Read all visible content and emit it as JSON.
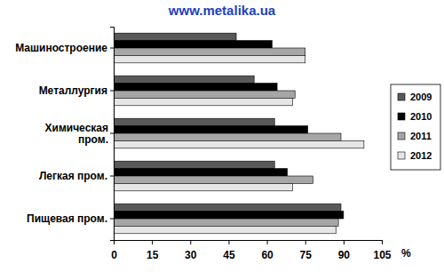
{
  "chart_data": {
    "type": "bar",
    "orientation": "horizontal",
    "title": "www.metalika.ua",
    "categories": [
      "Машиностроение",
      "Металлургия",
      "Химическая пром.",
      "Легкая пром.",
      "Пищевая пром."
    ],
    "series": [
      {
        "name": "2009",
        "color": "#595959",
        "values": [
          48,
          55,
          63,
          63,
          89
        ]
      },
      {
        "name": "2010",
        "color": "#000000",
        "values": [
          62,
          64,
          76,
          68,
          90
        ]
      },
      {
        "name": "2011",
        "color": "#a6a6a6",
        "values": [
          75,
          71,
          89,
          78,
          88
        ]
      },
      {
        "name": "2012",
        "color": "#e6e6e6",
        "values": [
          75,
          70,
          98,
          70,
          87
        ]
      }
    ],
    "xlim": [
      0,
      105
    ],
    "xticks": [
      0,
      15,
      30,
      45,
      60,
      75,
      90,
      105
    ],
    "x_label": "%",
    "legend": "right",
    "grid": false
  }
}
